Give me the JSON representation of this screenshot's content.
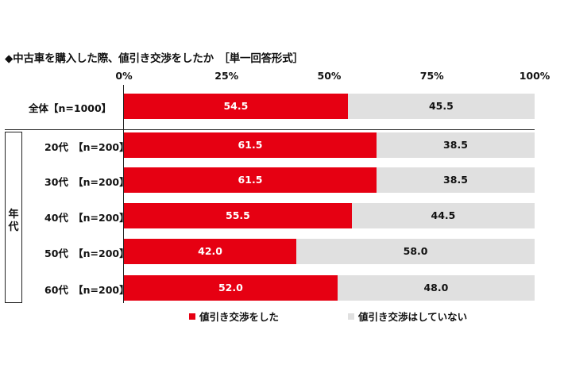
{
  "colors": {
    "yes": "#e60012",
    "no": "#e0e0e0",
    "yes_text": "#ffffff",
    "no_text": "#111111"
  },
  "chart_data": {
    "type": "bar",
    "orientation": "horizontal-stacked-100",
    "title": "◆中古車を購入した際、値引き交渉をしたか　［単一回答形式］",
    "x_ticks": [
      "0%",
      "25%",
      "50%",
      "75%",
      "100%"
    ],
    "xlim": [
      0,
      100
    ],
    "group_label": "年代",
    "categories": [
      "全体【n=1000】",
      "20代　【n=200】",
      "30代　【n=200】",
      "40代　【n=200】",
      "50代　【n=200】",
      "60代　【n=200】"
    ],
    "series": [
      {
        "name": "値引き交渉をした",
        "values": [
          "54.5",
          "61.5",
          "61.5",
          "55.5",
          "42.0",
          "52.0"
        ]
      },
      {
        "name": "値引き交渉はしていない",
        "values": [
          "45.5",
          "38.5",
          "38.5",
          "44.5",
          "58.0",
          "48.0"
        ]
      }
    ],
    "legend_position": "bottom"
  }
}
